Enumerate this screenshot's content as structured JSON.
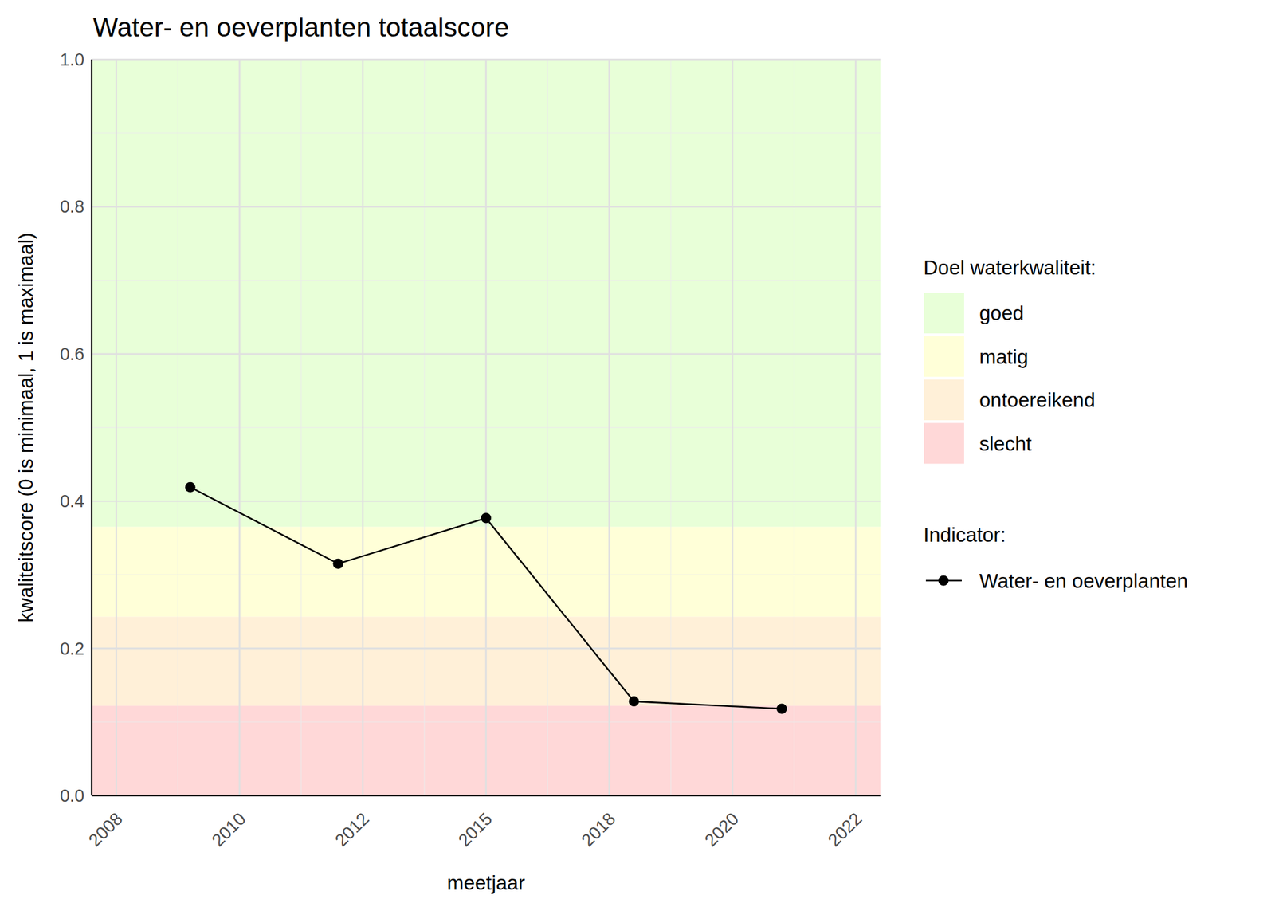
{
  "chart_data": {
    "type": "line",
    "title": "Water- en oeverplanten totaalscore",
    "x_label": "meetjaar",
    "y_label": "kwaliteitscore (0 is minimaal, 1 is maximaal)",
    "x": [
      2009,
      2012,
      2015,
      2018,
      2021
    ],
    "series": [
      {
        "name": "Water- en oeverplanten",
        "color": "#000000",
        "marker": "circle",
        "line_style": "solid",
        "values": [
          0.419,
          0.315,
          0.377,
          0.128,
          0.118
        ]
      }
    ],
    "xlim": [
      2007,
      2023
    ],
    "xticks": [
      {
        "value": 2007.5,
        "label": "2008"
      },
      {
        "value": 2010,
        "label": "2010"
      },
      {
        "value": 2012.5,
        "label": "2012"
      },
      {
        "value": 2015,
        "label": "2015"
      },
      {
        "value": 2017.5,
        "label": "2018"
      },
      {
        "value": 2020,
        "label": "2020"
      },
      {
        "value": 2022.5,
        "label": "2022"
      }
    ],
    "ylim": [
      0,
      1
    ],
    "yticks": [
      {
        "value": 0,
        "label": "0.0"
      },
      0.2,
      0.4,
      0.6,
      0.8,
      {
        "value": 1,
        "label": "1.0"
      }
    ],
    "grid": true,
    "legend": "right",
    "bands_title": "Doel waterkwaliteit:",
    "bands": [
      {
        "name": "goed",
        "color": "#e8ffd8",
        "from": 0.365,
        "to": 1
      },
      {
        "name": "matig",
        "color": "#ffffd8",
        "from": 0.243,
        "to": 0.365
      },
      {
        "name": "ontoereikend",
        "color": "#fff0d8",
        "from": 0.122,
        "to": 0.243
      },
      {
        "name": "slecht",
        "color": "#ffd8d8",
        "from": 0,
        "to": 0.122
      }
    ],
    "series_title": "Indicator:"
  }
}
